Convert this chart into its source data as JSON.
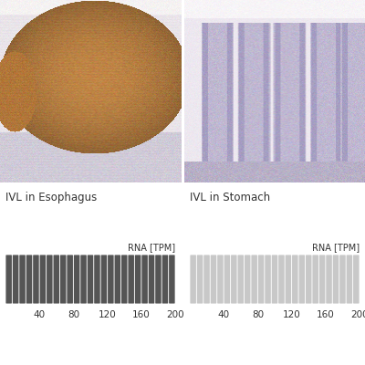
{
  "title_left": "IVL in Esophagus",
  "title_right": "IVL in Stomach",
  "rna_label": "RNA [TPM]",
  "tick_labels": [
    40,
    80,
    120,
    160,
    200
  ],
  "n_bars": 25,
  "bar_color_left": "#555555",
  "bar_color_right": "#c8c8c8",
  "background_color": "#ffffff",
  "text_color": "#333333",
  "title_fontsize": 8.5,
  "tick_fontsize": 7.5,
  "rna_label_fontsize": 7.0
}
